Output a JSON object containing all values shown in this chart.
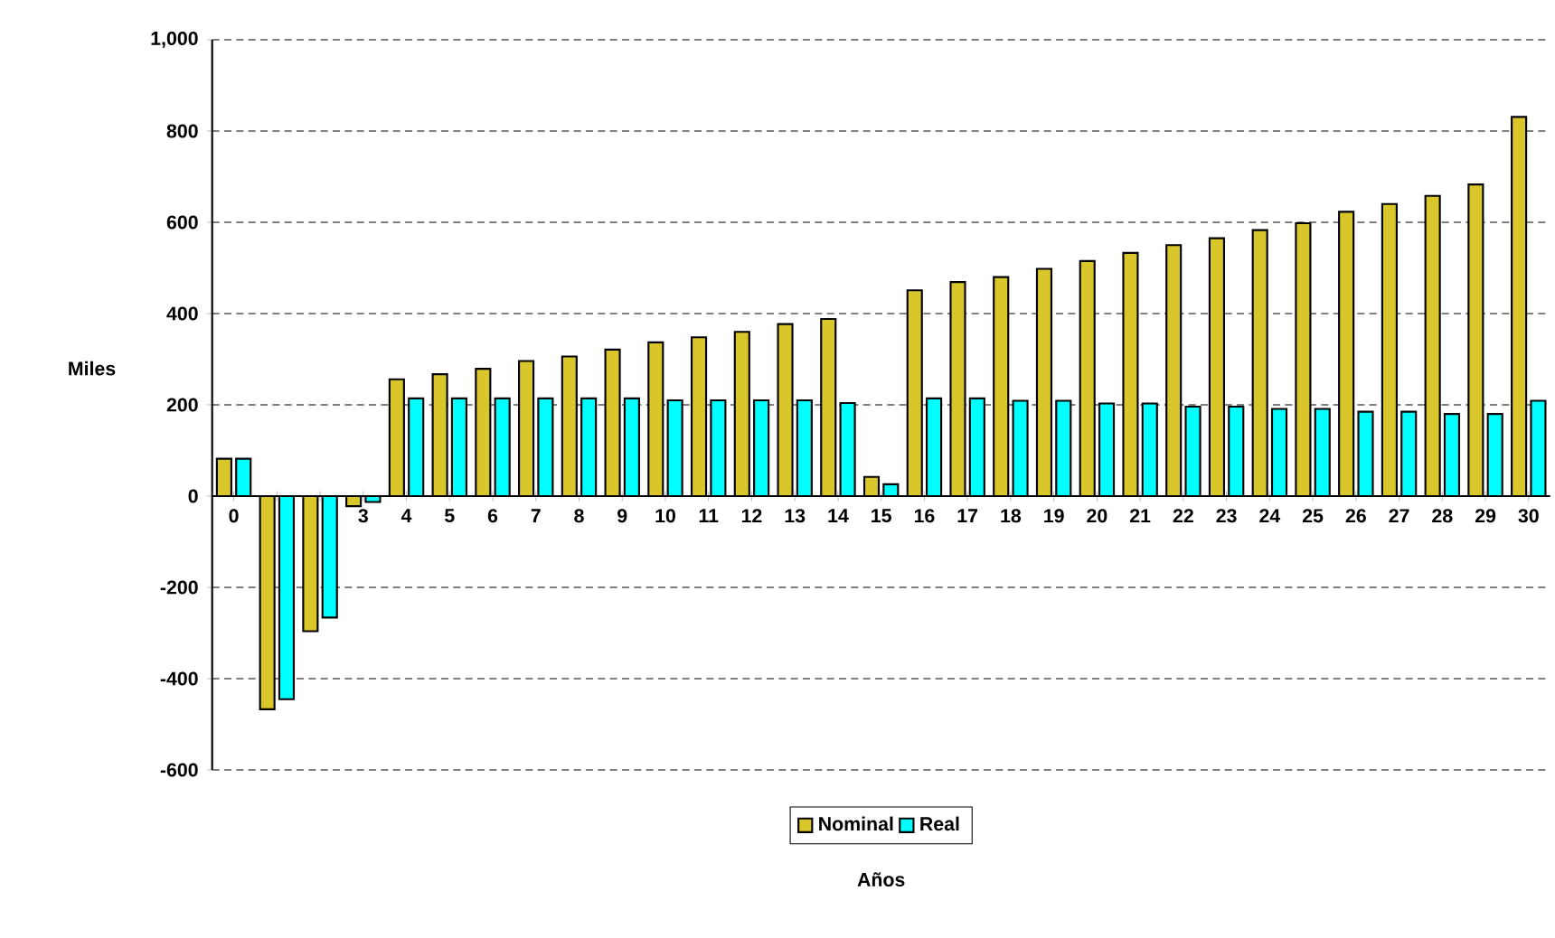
{
  "chart_data": {
    "type": "bar",
    "xlabel": "Años",
    "ylabel": "Miles",
    "categories": [
      "0",
      null,
      null,
      "3",
      "4",
      "5",
      "6",
      "7",
      "8",
      "9",
      "10",
      "11",
      "12",
      "13",
      "14",
      "15",
      "16",
      "17",
      "18",
      "19",
      "20",
      "21",
      "22",
      "23",
      "24",
      "25",
      "26",
      "27",
      "28",
      "29",
      "30"
    ],
    "series": [
      {
        "name": "Nominal",
        "color": "#d9c62b",
        "values": [
          82,
          -467,
          -296,
          -22,
          256,
          267,
          279,
          296,
          306,
          321,
          337,
          348,
          360,
          377,
          388,
          42,
          451,
          469,
          480,
          498,
          515,
          533,
          550,
          565,
          583,
          598,
          623,
          640,
          658,
          683,
          831
        ]
      },
      {
        "name": "Real",
        "color": "#00ffff",
        "values": [
          82,
          -445,
          -266,
          -13,
          214,
          214,
          214,
          214,
          214,
          214,
          210,
          210,
          210,
          210,
          204,
          26,
          214,
          214,
          209,
          209,
          203,
          203,
          196,
          196,
          191,
          191,
          185,
          185,
          180,
          180,
          209
        ]
      }
    ],
    "ylim": [
      -600,
      1000
    ],
    "yticks": [
      -600,
      -400,
      -200,
      0,
      200,
      400,
      600,
      800,
      {
        "value": 1000,
        "label": "1,000"
      }
    ],
    "grid": "y",
    "legend": "bottom"
  }
}
